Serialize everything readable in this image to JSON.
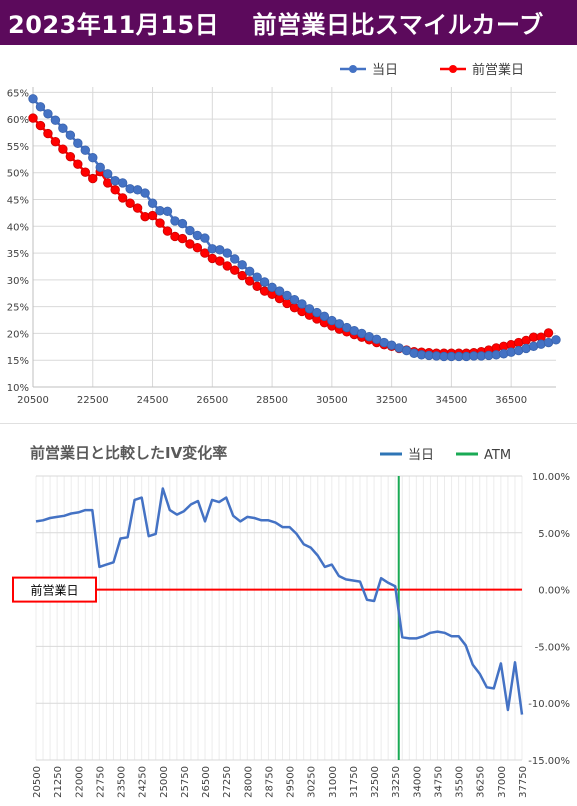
{
  "header": {
    "title": "2023年11月15日　 前営業日比スマイルカーブ"
  },
  "chart_data": [
    {
      "type": "line",
      "title": "",
      "legend_position": "top-right",
      "x_ticks": [
        20500,
        22500,
        24500,
        26500,
        28500,
        30500,
        32500,
        34500,
        36500
      ],
      "y_ticks": [
        "10%",
        "15%",
        "20%",
        "25%",
        "30%",
        "35%",
        "40%",
        "45%",
        "50%",
        "55%",
        "60%",
        "65%"
      ],
      "xlim": [
        20500,
        38000
      ],
      "ylim": [
        10,
        66
      ],
      "grid": true,
      "series": [
        {
          "name": "当日",
          "color": "#4472c4",
          "x": [
            20500,
            20750,
            21000,
            21250,
            21500,
            21750,
            22000,
            22250,
            22500,
            22750,
            23000,
            23250,
            23500,
            23750,
            24000,
            24250,
            24500,
            24750,
            25000,
            25250,
            25500,
            25750,
            26000,
            26250,
            26500,
            26750,
            27000,
            27250,
            27500,
            27750,
            28000,
            28250,
            28500,
            28750,
            29000,
            29250,
            29500,
            29750,
            30000,
            30250,
            30500,
            30750,
            31000,
            31250,
            31500,
            31750,
            32000,
            32250,
            32500,
            32750,
            33000,
            33250,
            33500,
            33750,
            34000,
            34250,
            34500,
            34750,
            35000,
            35250,
            35500,
            35750,
            36000,
            36250,
            36500,
            36750,
            37000,
            37250,
            37500,
            37750,
            38000
          ],
          "values": [
            63.8,
            62.3,
            61.0,
            59.8,
            58.3,
            57.0,
            55.5,
            54.2,
            52.8,
            51.0,
            49.8,
            48.5,
            48.1,
            47.0,
            46.8,
            46.2,
            44.3,
            42.9,
            42.8,
            41.0,
            40.5,
            39.2,
            38.3,
            37.8,
            35.8,
            35.6,
            35.0,
            33.9,
            32.8,
            31.6,
            30.5,
            29.6,
            28.6,
            27.9,
            27.1,
            26.3,
            25.5,
            24.6,
            23.9,
            23.2,
            22.4,
            21.8,
            21.1,
            20.5,
            20.0,
            19.4,
            18.9,
            18.3,
            17.8,
            17.3,
            16.8,
            16.3,
            16.0,
            15.9,
            15.8,
            15.7,
            15.7,
            15.7,
            15.7,
            15.8,
            15.8,
            15.9,
            16.0,
            16.2,
            16.5,
            16.8,
            17.2,
            17.6,
            18.0,
            18.3,
            18.8
          ]
        },
        {
          "name": "前営業日",
          "color": "#ff0000",
          "x": [
            20500,
            20750,
            21000,
            21250,
            21500,
            21750,
            22000,
            22250,
            22500,
            22750,
            23000,
            23250,
            23500,
            23750,
            24000,
            24250,
            24500,
            24750,
            25000,
            25250,
            25500,
            25750,
            26000,
            26250,
            26500,
            26750,
            27000,
            27250,
            27500,
            27750,
            28000,
            28250,
            28500,
            28750,
            29000,
            29250,
            29500,
            29750,
            30000,
            30250,
            30500,
            30750,
            31000,
            31250,
            31500,
            31750,
            32000,
            32250,
            32500,
            32750,
            33000,
            33250,
            33500,
            33750,
            34000,
            34250,
            34500,
            34750,
            35000,
            35250,
            35500,
            35750,
            36000,
            36250,
            36500,
            36750,
            37000,
            37250,
            37500,
            37750
          ],
          "values": [
            60.2,
            58.8,
            57.3,
            55.8,
            54.4,
            53.0,
            51.6,
            50.1,
            48.9,
            50.2,
            48.1,
            46.8,
            45.3,
            44.3,
            43.4,
            41.8,
            42.0,
            40.6,
            39.1,
            38.1,
            37.7,
            36.7,
            36.0,
            35.0,
            34.0,
            33.5,
            32.6,
            31.8,
            30.8,
            29.8,
            28.8,
            27.9,
            27.3,
            26.5,
            25.6,
            24.8,
            24.1,
            23.4,
            22.7,
            22.0,
            21.4,
            20.8,
            20.3,
            19.8,
            19.3,
            18.8,
            18.3,
            17.9,
            17.6,
            17.2,
            16.9,
            16.6,
            16.5,
            16.4,
            16.3,
            16.3,
            16.3,
            16.3,
            16.3,
            16.4,
            16.6,
            16.9,
            17.3,
            17.6,
            17.9,
            18.3,
            18.7,
            19.3,
            19.3,
            20.1
          ]
        }
      ]
    },
    {
      "type": "line",
      "title": "前営業日と比較したIV変化率",
      "legend_position": "top-right",
      "baseline_label": "前営業日",
      "atm_strike": 33375,
      "xlim": [
        20500,
        37750
      ],
      "ylim": [
        -15,
        10
      ],
      "y_ticks": [
        "10.00%",
        "5.00%",
        "0.00%",
        "-5.00%",
        "-10.00%",
        "-15.00%"
      ],
      "x_ticks": [
        20500,
        21250,
        22000,
        22750,
        23500,
        24250,
        25000,
        25750,
        26500,
        27250,
        28000,
        28750,
        29500,
        30250,
        31000,
        31750,
        32500,
        33250,
        34000,
        34750,
        35500,
        36250,
        37000,
        37750
      ],
      "grid": true,
      "series": [
        {
          "name": "当日",
          "color": "#4472c4",
          "x": [
            20500,
            20750,
            21000,
            21250,
            21500,
            21750,
            22000,
            22250,
            22500,
            22750,
            23000,
            23250,
            23500,
            23750,
            24000,
            24250,
            24500,
            24750,
            25000,
            25250,
            25500,
            25750,
            26000,
            26250,
            26500,
            26750,
            27000,
            27250,
            27500,
            27750,
            28000,
            28250,
            28500,
            28750,
            29000,
            29250,
            29500,
            29750,
            30000,
            30250,
            30500,
            30750,
            31000,
            31250,
            31500,
            31750,
            32000,
            32250,
            32500,
            32750,
            33000,
            33250,
            33500,
            33750,
            34000,
            34250,
            34500,
            34750,
            35000,
            35250,
            35500,
            35750,
            36000,
            36250,
            36500,
            36750,
            37000,
            37250,
            37500,
            37750
          ],
          "values": [
            6.0,
            6.1,
            6.3,
            6.4,
            6.5,
            6.7,
            6.8,
            7.0,
            7.0,
            2.0,
            2.2,
            2.4,
            4.5,
            4.6,
            7.9,
            8.1,
            4.7,
            4.9,
            8.9,
            7.0,
            6.6,
            6.9,
            7.5,
            7.8,
            6.0,
            7.9,
            7.7,
            8.1,
            6.5,
            6.0,
            6.4,
            6.3,
            6.1,
            6.1,
            5.9,
            5.5,
            5.5,
            4.9,
            4.0,
            3.7,
            3.0,
            2.0,
            2.2,
            1.2,
            0.9,
            0.8,
            0.7,
            -0.9,
            -1.0,
            1.0,
            0.6,
            0.3,
            -4.2,
            -4.3,
            -4.3,
            -4.1,
            -3.8,
            -3.7,
            -3.8,
            -4.1,
            -4.1,
            -4.9,
            -6.6,
            -7.4,
            -8.6,
            -8.7,
            -6.5,
            -10.6,
            -6.4,
            -11.0
          ]
        },
        {
          "name": "ATM",
          "color": "#1aaa55"
        }
      ]
    }
  ]
}
